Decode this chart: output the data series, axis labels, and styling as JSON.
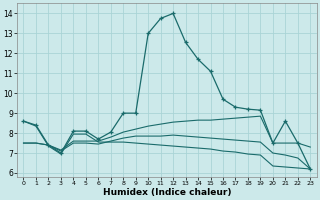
{
  "title": "",
  "xlabel": "Humidex (Indice chaleur)",
  "bg_color": "#cce9ea",
  "grid_color": "#aad4d6",
  "line_color": "#1a6b6b",
  "xlim": [
    -0.5,
    23.5
  ],
  "ylim": [
    5.8,
    14.5
  ],
  "yticks": [
    6,
    7,
    8,
    9,
    10,
    11,
    12,
    13,
    14
  ],
  "xticks": [
    0,
    1,
    2,
    3,
    4,
    5,
    6,
    7,
    8,
    9,
    10,
    11,
    12,
    13,
    14,
    15,
    16,
    17,
    18,
    19,
    20,
    21,
    22,
    23
  ],
  "line_main": [
    8.6,
    8.4,
    7.4,
    7.0,
    8.1,
    8.1,
    7.7,
    8.05,
    9.0,
    9.0,
    13.0,
    13.75,
    14.0,
    12.55,
    11.7,
    11.1,
    9.7,
    9.3,
    9.2,
    9.15,
    7.5,
    8.6,
    7.5,
    6.2
  ],
  "line_upper": [
    7.5,
    7.5,
    7.4,
    7.15,
    7.6,
    7.6,
    7.6,
    7.8,
    8.05,
    8.2,
    8.35,
    8.45,
    8.55,
    8.6,
    8.65,
    8.65,
    8.7,
    8.75,
    8.8,
    8.85,
    7.5,
    7.5,
    7.5,
    7.3
  ],
  "line_mid": [
    7.5,
    7.5,
    7.4,
    7.1,
    7.5,
    7.5,
    7.45,
    7.6,
    7.75,
    7.85,
    7.85,
    7.85,
    7.9,
    7.85,
    7.8,
    7.75,
    7.7,
    7.65,
    7.6,
    7.55,
    7.0,
    6.9,
    6.75,
    6.2
  ],
  "line_lower": [
    8.6,
    8.35,
    7.35,
    6.95,
    7.95,
    7.95,
    7.55,
    7.55,
    7.55,
    7.5,
    7.45,
    7.4,
    7.35,
    7.3,
    7.25,
    7.2,
    7.1,
    7.05,
    6.95,
    6.9,
    6.35,
    6.3,
    6.25,
    6.2
  ]
}
